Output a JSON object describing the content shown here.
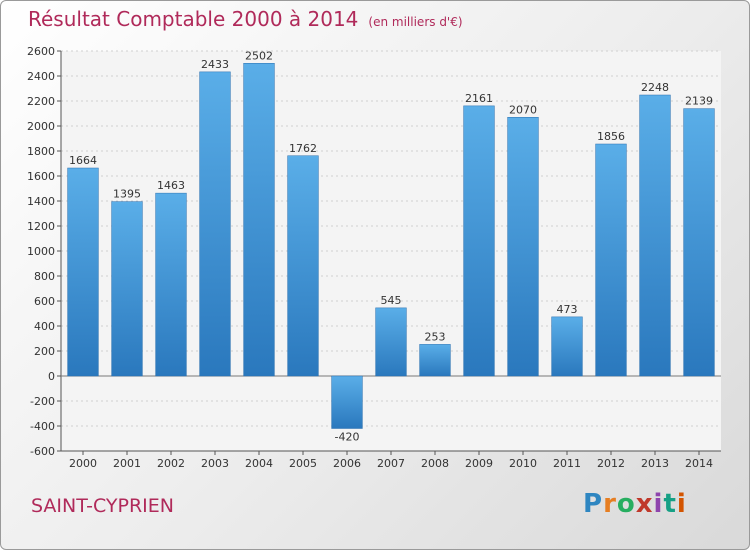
{
  "chart_data": {
    "type": "bar",
    "title": "Résultat Comptable 2000 à 2014",
    "subtitle": "(en milliers d'€)",
    "categories": [
      "2000",
      "2001",
      "2002",
      "2003",
      "2004",
      "2005",
      "2006",
      "2007",
      "2008",
      "2009",
      "2010",
      "2011",
      "2012",
      "2013",
      "2014"
    ],
    "values": [
      1664,
      1395,
      1463,
      2433,
      2502,
      1762,
      -420,
      545,
      253,
      2161,
      2070,
      473,
      1856,
      2248,
      2139
    ],
    "ylim": [
      -600,
      2600
    ],
    "yticks": [
      -600,
      -400,
      -200,
      0,
      200,
      400,
      600,
      800,
      1000,
      1200,
      1400,
      1600,
      1800,
      2000,
      2200,
      2400,
      2600
    ],
    "grid": true,
    "bar_color": "#3b8fd4",
    "xlabel": "",
    "ylabel": ""
  },
  "commune": "SAINT-CYPRIEN",
  "logo": {
    "letters": [
      "P",
      "r",
      "o",
      "x",
      "i",
      "t",
      "i"
    ],
    "colors": [
      "#2e86c1",
      "#e67e22",
      "#27ae60",
      "#c0392b",
      "#8e44ad",
      "#16a085",
      "#d35400"
    ]
  }
}
